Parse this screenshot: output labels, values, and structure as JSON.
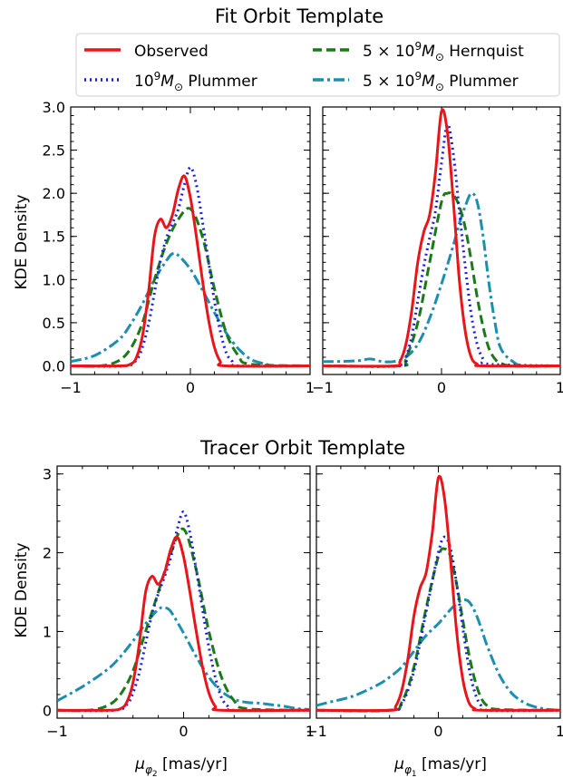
{
  "figure": {
    "group_titles": [
      "Fit Orbit Template",
      "Tracer Orbit Template"
    ],
    "ylabel": "KDE Density",
    "xlabels": [
      "μ_{φ2} [mas/yr]",
      "μ_{φ1} [mas/yr]"
    ]
  },
  "series_styles": [
    {
      "name": "Observed",
      "color": "#e8151b",
      "dash": "solid"
    },
    {
      "name": "10^9 M_⊙ Plummer",
      "color": "#1a1ee3",
      "dash": "dotted"
    },
    {
      "name": "5×10^9 M_⊙ Hernquist",
      "color": "#1a7a1a",
      "dash": "dashed"
    },
    {
      "name": "5×10^9 M_⊙ Plummer",
      "color": "#1b8fb0",
      "dash": "dashdot"
    }
  ],
  "legend": {
    "entries": [
      "Observed",
      "10^9 M_⊙ Plummer",
      "5×10^9 M_⊙ Hernquist",
      "5×10^9 M_⊙ Plummer"
    ]
  },
  "chart_data": [
    {
      "type": "line",
      "group": "Fit Orbit Template",
      "panel": "left",
      "xlabel": "",
      "ylabel": "KDE Density",
      "xlim": [
        -1,
        1
      ],
      "ylim": [
        -0.1,
        3.0
      ],
      "xticks": [
        -1,
        0,
        1
      ],
      "yticks": [
        0.0,
        0.5,
        1.0,
        1.5,
        2.0,
        2.5,
        3.0
      ],
      "yticklabels": [
        "0.0",
        "0.5",
        "1.0",
        "1.5",
        "2.0",
        "2.5",
        "3.0"
      ],
      "series": [
        {
          "name": "Observed",
          "x": [
            -1.0,
            -0.6,
            -0.5,
            -0.45,
            -0.4,
            -0.35,
            -0.3,
            -0.25,
            -0.2,
            -0.15,
            -0.1,
            -0.05,
            0.0,
            0.05,
            0.1,
            0.15,
            0.2,
            0.25,
            0.3,
            1.0
          ],
          "y": [
            0.0,
            0.0,
            0.02,
            0.1,
            0.35,
            0.85,
            1.5,
            1.7,
            1.6,
            1.75,
            2.05,
            2.2,
            1.95,
            1.5,
            1.0,
            0.55,
            0.22,
            0.05,
            0.0,
            0.0
          ]
        },
        {
          "name": "10^9 M_⊙ Plummer",
          "x": [
            -1.0,
            -0.55,
            -0.45,
            -0.4,
            -0.35,
            -0.3,
            -0.25,
            -0.2,
            -0.15,
            -0.1,
            -0.05,
            0.0,
            0.05,
            0.1,
            0.15,
            0.2,
            0.25,
            0.3,
            0.35,
            0.4,
            1.0
          ],
          "y": [
            0.0,
            0.0,
            0.07,
            0.22,
            0.48,
            0.85,
            1.22,
            1.48,
            1.65,
            1.82,
            2.1,
            2.3,
            2.1,
            1.68,
            1.22,
            0.76,
            0.4,
            0.15,
            0.05,
            0.0,
            0.0
          ]
        },
        {
          "name": "5×10^9 M_⊙ Hernquist",
          "x": [
            -1.0,
            -0.75,
            -0.6,
            -0.5,
            -0.4,
            -0.3,
            -0.2,
            -0.1,
            0.0,
            0.1,
            0.2,
            0.3,
            0.4,
            0.5,
            1.0
          ],
          "y": [
            0.0,
            0.0,
            0.06,
            0.2,
            0.5,
            1.0,
            1.42,
            1.7,
            1.82,
            1.5,
            0.9,
            0.38,
            0.12,
            0.02,
            0.0
          ]
        },
        {
          "name": "5×10^9 M_⊙ Plummer",
          "x": [
            -1.0,
            -0.8,
            -0.6,
            -0.5,
            -0.4,
            -0.3,
            -0.2,
            -0.15,
            -0.1,
            0.0,
            0.1,
            0.2,
            0.3,
            0.4,
            0.5,
            0.6,
            0.7,
            0.8,
            1.0
          ],
          "y": [
            0.05,
            0.12,
            0.3,
            0.48,
            0.72,
            1.0,
            1.22,
            1.3,
            1.28,
            1.12,
            0.88,
            0.62,
            0.38,
            0.2,
            0.08,
            0.03,
            0.0,
            0.0,
            0.0
          ]
        }
      ]
    },
    {
      "type": "line",
      "group": "Fit Orbit Template",
      "panel": "right",
      "xlabel": "",
      "ylabel": "",
      "xlim": [
        -1,
        1
      ],
      "ylim": [
        -0.1,
        3.0
      ],
      "xticks": [
        -1,
        0,
        1
      ],
      "yticks": [
        0.0,
        0.5,
        1.0,
        1.5,
        2.0,
        2.5,
        3.0
      ],
      "series": [
        {
          "name": "Observed",
          "x": [
            -1.0,
            -0.4,
            -0.35,
            -0.3,
            -0.25,
            -0.2,
            -0.15,
            -0.1,
            -0.05,
            0.0,
            0.05,
            0.1,
            0.15,
            0.2,
            0.25,
            0.3,
            0.35,
            1.0
          ],
          "y": [
            0.0,
            0.0,
            0.05,
            0.25,
            0.65,
            1.2,
            1.55,
            1.75,
            2.25,
            2.95,
            2.7,
            1.9,
            1.0,
            0.4,
            0.1,
            0.02,
            0.0,
            0.0
          ]
        },
        {
          "name": "10^9 M_⊙ Plummer",
          "x": [
            -1.0,
            -0.35,
            -0.3,
            -0.25,
            -0.2,
            -0.15,
            -0.1,
            -0.05,
            0.0,
            0.05,
            0.1,
            0.15,
            0.2,
            0.25,
            0.3,
            0.35,
            0.4,
            1.0
          ],
          "y": [
            0.0,
            0.0,
            0.1,
            0.35,
            0.75,
            1.15,
            1.48,
            1.8,
            2.35,
            2.8,
            2.45,
            1.8,
            1.15,
            0.6,
            0.25,
            0.08,
            0.02,
            0.0
          ]
        },
        {
          "name": "5×10^9 M_⊙ Hernquist",
          "x": [
            -1.0,
            -0.35,
            -0.3,
            -0.2,
            -0.1,
            0.0,
            0.05,
            0.1,
            0.15,
            0.2,
            0.25,
            0.3,
            0.35,
            0.4,
            0.45,
            0.5,
            0.6,
            1.0
          ],
          "y": [
            0.0,
            0.0,
            0.08,
            0.5,
            1.2,
            1.9,
            2.0,
            1.98,
            1.85,
            1.6,
            1.22,
            0.8,
            0.45,
            0.2,
            0.08,
            0.03,
            0.0,
            0.0
          ]
        },
        {
          "name": "5×10^9 M_⊙ Plummer",
          "x": [
            -1.0,
            -0.9,
            -0.7,
            -0.6,
            -0.5,
            -0.4,
            -0.3,
            -0.2,
            -0.1,
            0.0,
            0.1,
            0.15,
            0.2,
            0.25,
            0.3,
            0.35,
            0.4,
            0.45,
            0.5,
            0.6,
            0.7,
            1.0
          ],
          "y": [
            0.05,
            0.05,
            0.06,
            0.08,
            0.05,
            0.05,
            0.1,
            0.25,
            0.55,
            0.95,
            1.4,
            1.65,
            1.85,
            2.0,
            1.9,
            1.5,
            0.95,
            0.5,
            0.2,
            0.05,
            0.0,
            0.0
          ]
        }
      ]
    },
    {
      "type": "line",
      "group": "Tracer Orbit Template",
      "panel": "left",
      "xlabel": "μ_{φ2} [mas/yr]",
      "ylabel": "KDE Density",
      "xlim": [
        -1,
        1
      ],
      "ylim": [
        -0.1,
        3.1
      ],
      "xticks": [
        -1,
        0,
        1
      ],
      "yticks": [
        0,
        1,
        2,
        3
      ],
      "yticklabels": [
        "0",
        "1",
        "2",
        "3"
      ],
      "series": [
        {
          "name": "Observed",
          "x": [
            -1.0,
            -0.6,
            -0.5,
            -0.45,
            -0.4,
            -0.35,
            -0.3,
            -0.25,
            -0.2,
            -0.15,
            -0.1,
            -0.05,
            0.0,
            0.05,
            0.1,
            0.15,
            0.2,
            0.25,
            0.3,
            1.0
          ],
          "y": [
            0.0,
            0.0,
            0.02,
            0.1,
            0.35,
            0.85,
            1.5,
            1.7,
            1.6,
            1.75,
            2.05,
            2.2,
            1.95,
            1.5,
            1.0,
            0.55,
            0.22,
            0.05,
            0.0,
            0.0
          ]
        },
        {
          "name": "10^9 M_⊙ Plummer",
          "x": [
            -1.0,
            -0.55,
            -0.45,
            -0.4,
            -0.35,
            -0.3,
            -0.25,
            -0.2,
            -0.15,
            -0.1,
            -0.05,
            0.0,
            0.05,
            0.1,
            0.15,
            0.2,
            0.25,
            0.3,
            0.35,
            0.4,
            1.0
          ],
          "y": [
            0.0,
            0.0,
            0.07,
            0.22,
            0.48,
            0.85,
            1.22,
            1.48,
            1.7,
            1.95,
            2.3,
            2.52,
            2.25,
            1.78,
            1.28,
            0.8,
            0.42,
            0.16,
            0.05,
            0.0,
            0.0
          ]
        },
        {
          "name": "5×10^9 M_⊙ Hernquist",
          "x": [
            -1.0,
            -0.75,
            -0.6,
            -0.5,
            -0.4,
            -0.3,
            -0.2,
            -0.1,
            0.0,
            0.1,
            0.2,
            0.3,
            0.4,
            0.5,
            1.0
          ],
          "y": [
            0.0,
            0.0,
            0.06,
            0.2,
            0.5,
            1.0,
            1.5,
            2.0,
            2.3,
            1.78,
            1.0,
            0.42,
            0.12,
            0.02,
            0.0
          ]
        },
        {
          "name": "5×10^9 M_⊙ Plummer",
          "x": [
            -1.0,
            -0.8,
            -0.6,
            -0.5,
            -0.4,
            -0.3,
            -0.2,
            -0.15,
            -0.1,
            0.0,
            0.1,
            0.2,
            0.3,
            0.4,
            0.5,
            0.6,
            0.7,
            0.8,
            0.9,
            1.0
          ],
          "y": [
            0.12,
            0.3,
            0.52,
            0.68,
            0.88,
            1.1,
            1.28,
            1.3,
            1.25,
            0.98,
            0.68,
            0.42,
            0.24,
            0.14,
            0.1,
            0.09,
            0.07,
            0.05,
            0.02,
            0.01
          ]
        }
      ]
    },
    {
      "type": "line",
      "group": "Tracer Orbit Template",
      "panel": "right",
      "xlabel": "μ_{φ1} [mas/yr]",
      "ylabel": "",
      "xlim": [
        -1,
        1
      ],
      "ylim": [
        -0.1,
        3.1
      ],
      "xticks": [
        -1,
        0,
        1
      ],
      "yticks": [
        0,
        1,
        2,
        3
      ],
      "series": [
        {
          "name": "Observed",
          "x": [
            -1.0,
            -0.4,
            -0.35,
            -0.3,
            -0.25,
            -0.2,
            -0.15,
            -0.1,
            -0.05,
            0.0,
            0.05,
            0.1,
            0.15,
            0.2,
            0.25,
            0.3,
            0.35,
            1.0
          ],
          "y": [
            0.0,
            0.0,
            0.05,
            0.25,
            0.65,
            1.2,
            1.55,
            1.75,
            2.25,
            2.95,
            2.7,
            1.9,
            1.0,
            0.4,
            0.1,
            0.02,
            0.0,
            0.0
          ]
        },
        {
          "name": "10^9 M_⊙ Plummer",
          "x": [
            -1.0,
            -0.4,
            -0.3,
            -0.2,
            -0.1,
            0.0,
            0.05,
            0.1,
            0.15,
            0.2,
            0.25,
            0.3,
            0.35,
            0.4,
            1.0
          ],
          "y": [
            0.0,
            0.0,
            0.08,
            0.5,
            1.25,
            2.0,
            2.2,
            2.05,
            1.6,
            1.05,
            0.55,
            0.22,
            0.06,
            0.0,
            0.0
          ]
        },
        {
          "name": "5×10^9 M_⊙ Hernquist",
          "x": [
            -1.0,
            -0.4,
            -0.3,
            -0.2,
            -0.1,
            0.0,
            0.05,
            0.1,
            0.15,
            0.2,
            0.25,
            0.3,
            0.35,
            0.4,
            0.5,
            1.0
          ],
          "y": [
            0.0,
            0.0,
            0.1,
            0.55,
            1.3,
            1.95,
            2.05,
            1.95,
            1.6,
            1.15,
            0.72,
            0.38,
            0.16,
            0.06,
            0.01,
            0.0
          ]
        },
        {
          "name": "5×10^9 M_⊙ Plummer",
          "x": [
            -1.0,
            -0.9,
            -0.7,
            -0.5,
            -0.4,
            -0.3,
            -0.2,
            -0.1,
            0.0,
            0.1,
            0.15,
            0.2,
            0.25,
            0.3,
            0.35,
            0.4,
            0.5,
            0.6,
            0.7,
            0.8,
            0.9,
            1.0
          ],
          "y": [
            0.06,
            0.1,
            0.18,
            0.32,
            0.42,
            0.55,
            0.75,
            0.95,
            1.1,
            1.28,
            1.35,
            1.4,
            1.38,
            1.25,
            1.05,
            0.82,
            0.45,
            0.22,
            0.1,
            0.04,
            0.01,
            0.0
          ]
        }
      ]
    }
  ]
}
